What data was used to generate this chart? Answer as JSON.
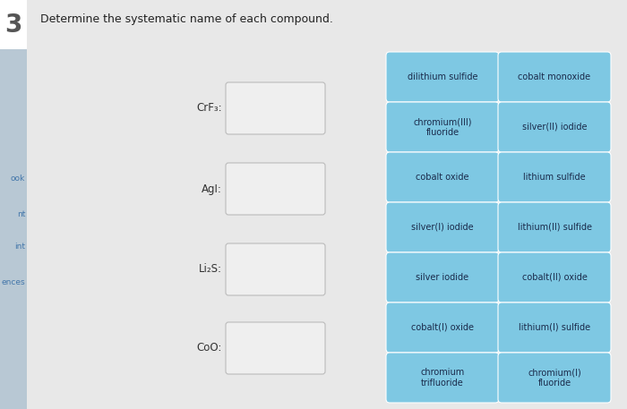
{
  "title": "Determine the systematic name of each compound.",
  "bg_color": "#e2e2e2",
  "sidebar_color": "#b8c8d4",
  "content_color": "#e8e8e8",
  "number_label": "3",
  "number_color": "#555555",
  "sidebar_items": [
    "ook",
    "nt",
    "int",
    "ences"
  ],
  "sidebar_item_color": "#4477aa",
  "comp_labels": [
    "CrF₃:",
    "AgI:",
    "Li₂S:",
    "CoO:"
  ],
  "comp_label_color": "#333333",
  "answer_box_color": "#efefef",
  "answer_box_edge": "#bbbbbb",
  "blue_button_color": "#7ec8e3",
  "button_text_color": "#1a2a4a",
  "buttons_left": [
    "dilithium sulfide",
    "chromium(III)\nfluoride",
    "cobalt oxide",
    "silver(I) iodide",
    "silver iodide",
    "cobalt(I) oxide",
    "chromium\ntrifluoride"
  ],
  "buttons_right": [
    "cobalt monoxide",
    "silver(II) iodide",
    "lithium sulfide",
    "lithium(II) sulfide",
    "cobalt(II) oxide",
    "lithium(I) sulfide",
    "chromium(I)\nfluoride"
  ]
}
